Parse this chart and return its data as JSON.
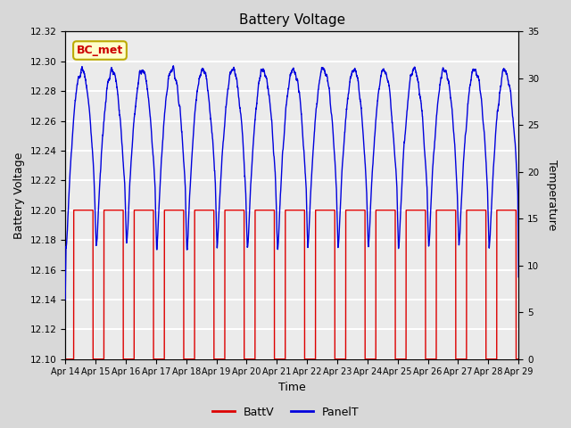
{
  "title": "Battery Voltage",
  "xlabel": "Time",
  "ylabel_left": "Battery Voltage",
  "ylabel_right": "Temperature",
  "annotation_text": "BC_met",
  "annotation_bg": "#ffffcc",
  "annotation_border": "#bbaa00",
  "ylim_left": [
    12.1,
    12.32
  ],
  "ylim_right": [
    0,
    35
  ],
  "yticks_left": [
    12.1,
    12.12,
    12.14,
    12.16,
    12.18,
    12.2,
    12.22,
    12.24,
    12.26,
    12.28,
    12.3,
    12.32
  ],
  "yticks_right": [
    0,
    5,
    10,
    15,
    20,
    25,
    30,
    35
  ],
  "fig_bg_color": "#d8d8d8",
  "plot_bg_color": "#ebebeb",
  "grid_color": "#ffffff",
  "batt_color": "#dd0000",
  "panel_color": "#0000dd",
  "legend_batt": "BattV",
  "legend_panel": "PanelT",
  "x_tick_labels": [
    "Apr 14",
    "Apr 15",
    "Apr 16",
    "Apr 17",
    "Apr 18",
    "Apr 19",
    "Apr 20",
    "Apr 21",
    "Apr 22",
    "Apr 23",
    "Apr 24",
    "Apr 25",
    "Apr 26",
    "Apr 27",
    "Apr 28",
    "Apr 29"
  ],
  "num_days": 15,
  "x_min": 0,
  "x_max": 15
}
